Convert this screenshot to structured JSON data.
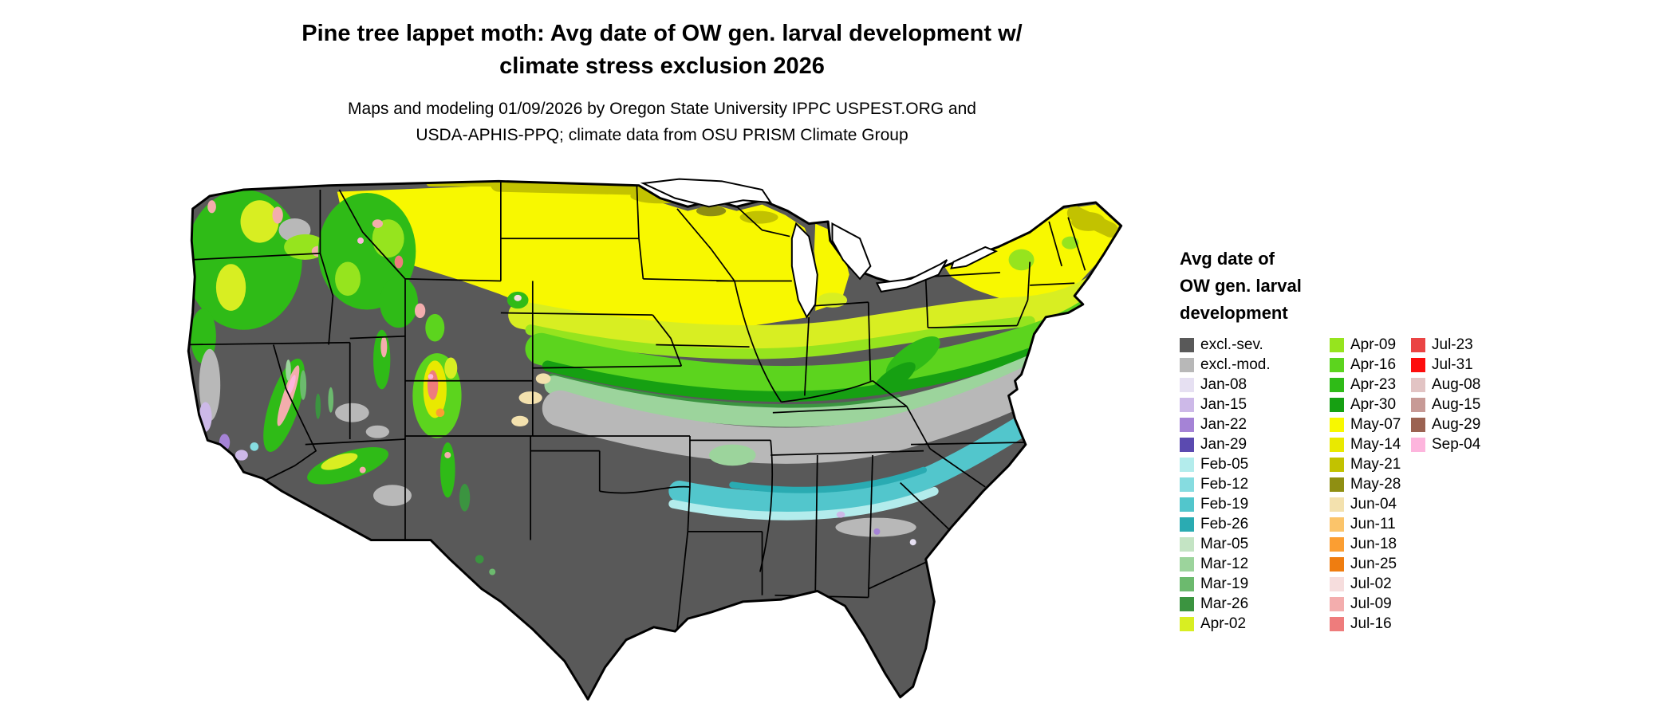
{
  "title": {
    "line1": "Pine tree lappet moth: Avg date of OW gen. larval development w/",
    "line2": "climate stress exclusion 2026"
  },
  "subtitle": {
    "line1": "Maps and modeling 01/09/2026 by Oregon State University IPPC USPEST.ORG and",
    "line2": "USDA-APHIS-PPQ; climate data from OSU PRISM Climate Group"
  },
  "legend": {
    "title_lines": [
      "Avg date of",
      "OW gen. larval",
      "development"
    ],
    "columns": [
      [
        {
          "label": "excl.-sev.",
          "color": "#595959"
        },
        {
          "label": "excl.-mod.",
          "color": "#b8b8b8"
        },
        {
          "label": "Jan-08",
          "color": "#e6e0f2"
        },
        {
          "label": "Jan-15",
          "color": "#cdb9e8"
        },
        {
          "label": "Jan-22",
          "color": "#a583d6"
        },
        {
          "label": "Jan-29",
          "color": "#5b4ab0"
        },
        {
          "label": "Feb-05",
          "color": "#b3ecec"
        },
        {
          "label": "Feb-12",
          "color": "#86dce0"
        },
        {
          "label": "Feb-19",
          "color": "#52c6cc"
        },
        {
          "label": "Feb-26",
          "color": "#2aabb2"
        },
        {
          "label": "Mar-05",
          "color": "#c4e4c4"
        },
        {
          "label": "Mar-12",
          "color": "#9cd49c"
        },
        {
          "label": "Mar-19",
          "color": "#6cba6e"
        },
        {
          "label": "Mar-26",
          "color": "#3b9440"
        },
        {
          "label": "Apr-02",
          "color": "#d8ee22"
        }
      ],
      [
        {
          "label": "Apr-09",
          "color": "#96e41e"
        },
        {
          "label": "Apr-16",
          "color": "#5cd41e"
        },
        {
          "label": "Apr-23",
          "color": "#2fbb17"
        },
        {
          "label": "Apr-30",
          "color": "#16a012"
        },
        {
          "label": "May-07",
          "color": "#f8f800"
        },
        {
          "label": "May-14",
          "color": "#e9e900"
        },
        {
          "label": "May-21",
          "color": "#c2c200"
        },
        {
          "label": "May-28",
          "color": "#8f8f12"
        },
        {
          "label": "Jun-04",
          "color": "#f3e1ae"
        },
        {
          "label": "Jun-11",
          "color": "#fbc46a"
        },
        {
          "label": "Jun-18",
          "color": "#fb9e32"
        },
        {
          "label": "Jun-25",
          "color": "#ef7d10"
        },
        {
          "label": "Jul-02",
          "color": "#f6dddd"
        },
        {
          "label": "Jul-09",
          "color": "#f3adad"
        },
        {
          "label": "Jul-16",
          "color": "#ee7c7c"
        }
      ],
      [
        {
          "label": "Jul-23",
          "color": "#ea4444"
        },
        {
          "label": "Jul-31",
          "color": "#fd0d0d"
        },
        {
          "label": "Aug-08",
          "color": "#e2c4c4"
        },
        {
          "label": "Aug-15",
          "color": "#c79a96"
        },
        {
          "label": "Aug-29",
          "color": "#9b6352"
        },
        {
          "label": "Sep-04",
          "color": "#fdb5dd"
        }
      ]
    ]
  },
  "map": {
    "name": "CONUS map of avg date of OW gen. larval development with climate stress exclusion",
    "type": "choropleth-raster",
    "colors": {
      "water": "#ffffff",
      "border": "#000000"
    },
    "visual_summary": [
      {
        "region": "Texas, Gulf Coast, Deep South, Florida, Great Basin and interior Southwest",
        "class": "excl.-sev."
      },
      {
        "region": "OK-AR-TN-NC band and scattered western basins",
        "class": "excl.-mod."
      },
      {
        "region": "MS-AL-GA-SC coastal plain band",
        "class": "Feb-05 to Feb-26"
      },
      {
        "region": "KS-MO-KY-VA band",
        "class": "Mar-26 to Apr-23"
      },
      {
        "region": "NE-IA-IL-IN-OH-PA band",
        "class": "Apr-02 to Apr-30"
      },
      {
        "region": "Northern Plains, Upper Midwest, NY and New England",
        "class": "May-07 to May-28"
      },
      {
        "region": "Pacific Northwest and mountain West forests",
        "class": "Mar-May greens; Jun-Sep at high elevation"
      }
    ]
  }
}
